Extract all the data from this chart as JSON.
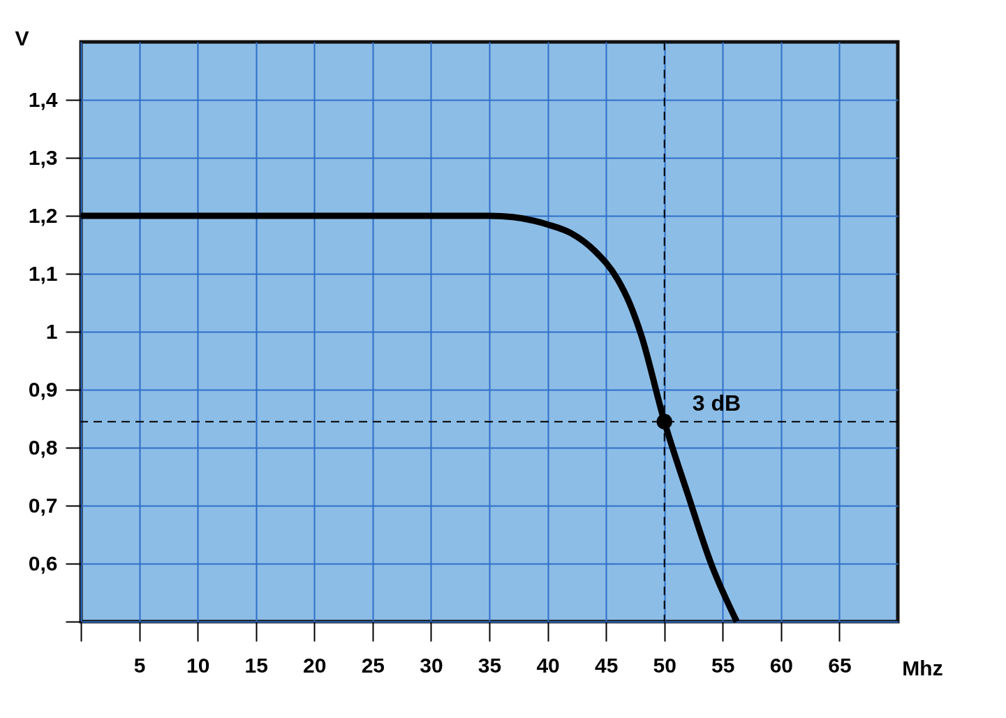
{
  "chart_data": {
    "type": "line",
    "xlabel": "Mhz",
    "ylabel": "V",
    "x": [
      0,
      10,
      20,
      30,
      35,
      37,
      40,
      42,
      44,
      46,
      47,
      48,
      50,
      52,
      54,
      56.2
    ],
    "series": [
      {
        "color": "#000000",
        "values": [
          1.2,
          1.2,
          1.2,
          1.2,
          1.2,
          1.198,
          1.185,
          1.17,
          1.14,
          1.09,
          1.05,
          0.995,
          0.845,
          0.72,
          0.6,
          0.5
        ]
      }
    ],
    "xlim": [
      0,
      70
    ],
    "ylim": [
      0.5,
      1.5
    ],
    "xticks": [
      {
        "value": 0,
        "label": null
      },
      5,
      10,
      15,
      20,
      25,
      30,
      35,
      40,
      45,
      50,
      55,
      60,
      65
    ],
    "yticks": [
      {
        "value": 0.5,
        "label": null
      },
      {
        "value": 0.6,
        "label": "0,6"
      },
      {
        "value": 0.7,
        "label": "0,7"
      },
      {
        "value": 0.8,
        "label": "0,8"
      },
      {
        "value": 0.9,
        "label": "0,9"
      },
      1,
      {
        "value": 1.1,
        "label": "1,1"
      },
      {
        "value": 1.2,
        "label": "1,2"
      },
      {
        "value": 1.3,
        "label": "1,3"
      },
      {
        "value": 1.4,
        "label": "1,4"
      }
    ],
    "ref_lines": [
      {
        "axis": "y",
        "value": 0.845,
        "line_style": "dashed",
        "color": "#000000"
      },
      {
        "axis": "x",
        "value": 50,
        "line_style": "dashed",
        "color": "#000000"
      }
    ],
    "annotations": [
      {
        "text": "3 dB",
        "x": 50,
        "y": 0.845
      }
    ],
    "grid": true,
    "marker": "none",
    "line_style": "solid"
  }
}
